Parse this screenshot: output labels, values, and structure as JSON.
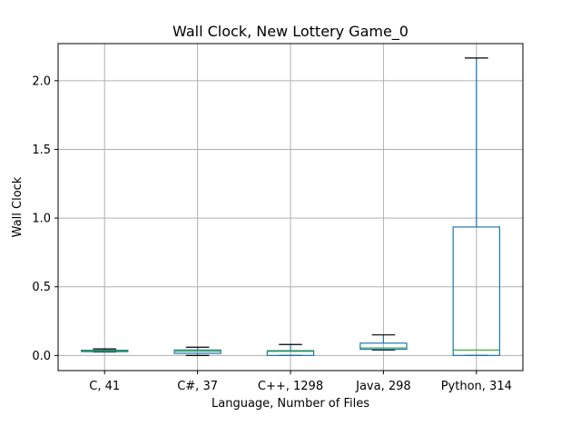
{
  "chart_data": {
    "type": "box",
    "title": "Wall Clock, New Lottery Game_0",
    "xlabel": "Language, Number of Files",
    "ylabel": "Wall Clock",
    "ylim": [
      -0.11,
      2.27
    ],
    "yticks": [
      0.0,
      0.5,
      1.0,
      1.5,
      2.0
    ],
    "ytick_labels": [
      "0.0",
      "0.5",
      "1.0",
      "1.5",
      "2.0"
    ],
    "grid": true,
    "categories": [
      "C, 41",
      "C#, 37",
      "C++, 1298",
      "Java, 298",
      "Python, 314"
    ],
    "boxes": [
      {
        "category": "C, 41",
        "whisker_low": 0.025,
        "q1": 0.028,
        "median": 0.032,
        "q3": 0.038,
        "whisker_high": 0.048
      },
      {
        "category": "C#, 37",
        "whisker_low": 0.0,
        "q1": 0.015,
        "median": 0.03,
        "q3": 0.04,
        "whisker_high": 0.06
      },
      {
        "category": "C++, 1298",
        "whisker_low": 0.0,
        "q1": 0.0,
        "median": 0.03,
        "q3": 0.035,
        "whisker_high": 0.08
      },
      {
        "category": "Java, 298",
        "whisker_low": 0.04,
        "q1": 0.045,
        "median": 0.055,
        "q3": 0.09,
        "whisker_high": 0.15
      },
      {
        "category": "Python, 314",
        "whisker_low": 0.0,
        "q1": 0.0,
        "median": 0.04,
        "q3": 0.935,
        "whisker_high": 2.165
      }
    ],
    "colors": {
      "box": "#1f77b4",
      "median": "#2ca02c",
      "whisker": "#1f77b4",
      "cap": "#000000",
      "grid": "#b0b0b0"
    }
  }
}
